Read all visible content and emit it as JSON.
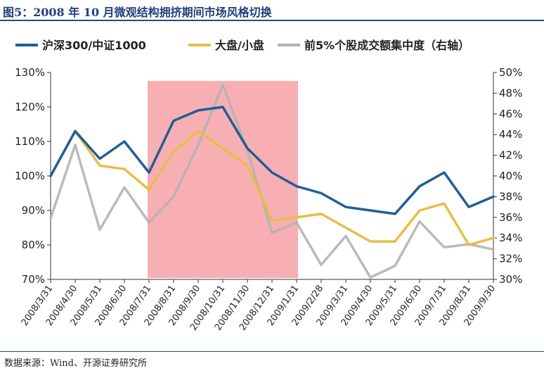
{
  "header": {
    "title": "图5：2008 年 10 月微观结构拥挤期间市场风格切换"
  },
  "footer": {
    "source": "数据来源：Wind、开源证券研究所"
  },
  "chart_data": {
    "type": "line",
    "categories": [
      "2008/3/31",
      "2008/4/30",
      "2008/5/31",
      "2008/6/30",
      "2008/7/31",
      "2008/8/31",
      "2008/9/30",
      "2008/10/31",
      "2008/11/30",
      "2008/12/31",
      "2009/1/31",
      "2009/2/28",
      "2009/3/31",
      "2009/4/30",
      "2009/5/31",
      "2009/6/30",
      "2009/7/31",
      "2009/8/31",
      "2009/9/30"
    ],
    "series": [
      {
        "name": "沪深300/中证1000",
        "axis": "left",
        "color": "#1f5f96",
        "values": [
          1.0,
          1.13,
          1.05,
          1.1,
          1.01,
          1.16,
          1.19,
          1.2,
          1.08,
          1.01,
          0.97,
          0.95,
          0.91,
          0.9,
          0.89,
          0.97,
          1.01,
          0.91,
          0.94
        ]
      },
      {
        "name": "大盘/小盘",
        "axis": "left",
        "color": "#e8bd47",
        "values": [
          1.0,
          1.13,
          1.03,
          1.02,
          0.96,
          1.07,
          1.13,
          1.08,
          1.03,
          0.87,
          0.88,
          0.89,
          0.85,
          0.81,
          0.81,
          0.9,
          0.92,
          0.8,
          0.82
        ]
      },
      {
        "name": "前5%个股成交额集中度（右轴）",
        "axis": "right",
        "color": "#b3b3b3",
        "values": [
          0.359,
          0.43,
          0.348,
          0.389,
          0.355,
          0.38,
          0.43,
          0.488,
          0.425,
          0.345,
          0.355,
          0.314,
          0.342,
          0.302,
          0.313,
          0.356,
          0.331,
          0.334,
          0.329
        ]
      }
    ],
    "highlight": {
      "from": "2008/7/31",
      "to": "2009/1/31",
      "color": "#f7a1a6"
    },
    "y_left": {
      "min": 0.7,
      "max": 1.3,
      "step": 0.1,
      "ticks": [
        "70%",
        "80%",
        "90%",
        "100%",
        "110%",
        "120%",
        "130%"
      ]
    },
    "y_right": {
      "min": 0.3,
      "max": 0.5,
      "step": 0.02,
      "ticks": [
        "30%",
        "32%",
        "34%",
        "36%",
        "38%",
        "40%",
        "42%",
        "44%",
        "46%",
        "48%",
        "50%"
      ]
    },
    "legend": {
      "position": "top"
    },
    "grid": false
  }
}
